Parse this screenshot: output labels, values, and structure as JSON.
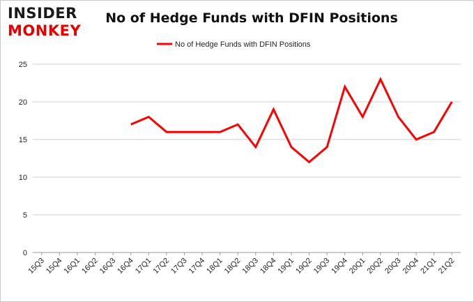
{
  "logo": {
    "line1": "INSIDER",
    "line2": "MONKEY"
  },
  "chart_data": {
    "type": "line",
    "title": "No of Hedge Funds with DFIN Positions",
    "xlabel": "",
    "ylabel": "",
    "categories": [
      "15Q3",
      "15Q4",
      "16Q1",
      "16Q2",
      "16Q3",
      "16Q4",
      "17Q1",
      "17Q2",
      "17Q3",
      "17Q4",
      "18Q1",
      "18Q2",
      "18Q3",
      "18Q4",
      "19Q1",
      "19Q2",
      "19Q3",
      "19Q4",
      "20Q1",
      "20Q2",
      "20Q3",
      "20Q4",
      "21Q1",
      "21Q2"
    ],
    "series": [
      {
        "name": "No of Hedge Funds with DFIN Positions",
        "color": "#ff0000",
        "values": [
          null,
          null,
          null,
          null,
          null,
          17,
          18,
          16,
          16,
          16,
          16,
          17,
          14,
          19,
          14,
          12,
          14,
          22,
          18,
          23,
          18,
          15,
          16,
          20
        ]
      }
    ],
    "yticks": [
      0,
      5,
      10,
      15,
      20,
      25
    ],
    "ylim": [
      0,
      25
    ],
    "grid": true,
    "legend_position": "top-center"
  }
}
